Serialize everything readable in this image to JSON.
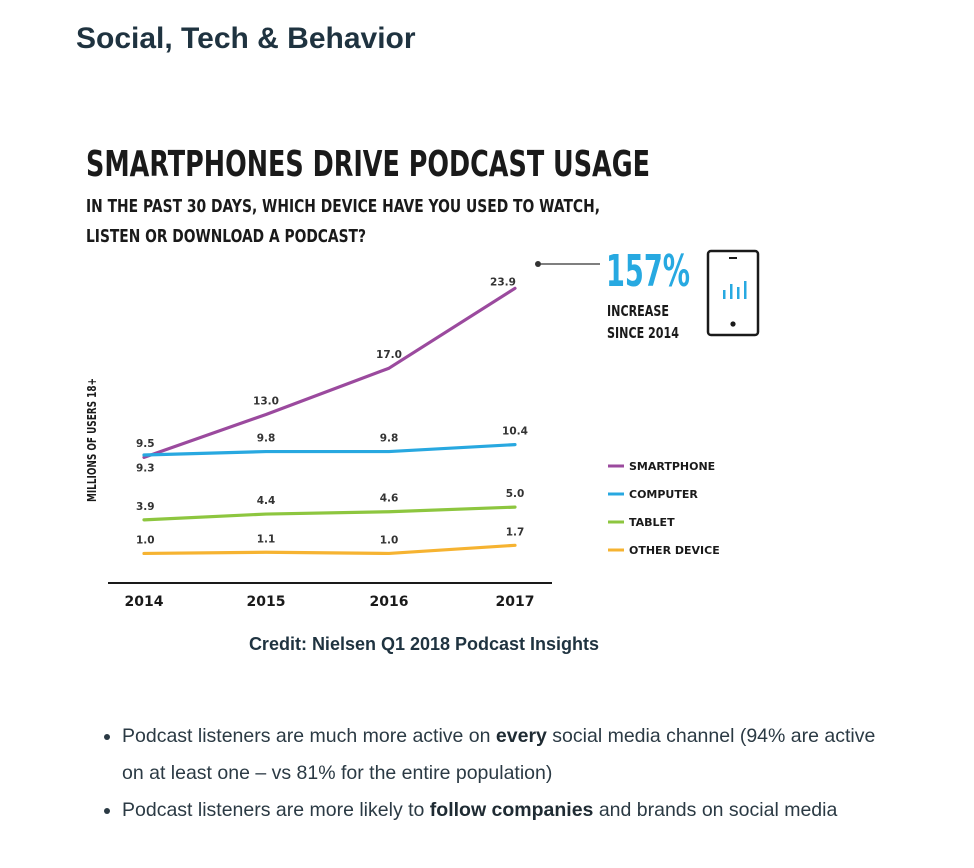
{
  "page": {
    "heading": "Social, Tech & Behavior",
    "credit": "Credit: Nielsen Q1 2018 Podcast Insights",
    "bullets": [
      {
        "pre": "Podcast listeners are much more active on ",
        "bold": "every",
        "post": " social media channel (94% are active on at least one – vs 81% for the entire population)"
      },
      {
        "pre": "Podcast listeners are more likely to ",
        "bold": "follow companies",
        "post": " and brands on social media"
      }
    ]
  },
  "chart_data": {
    "type": "line",
    "title": "SMARTPHONES DRIVE PODCAST USAGE",
    "subtitle_lines": [
      "IN THE PAST 30 DAYS, WHICH DEVICE HAVE YOU USED TO WATCH,",
      "LISTEN OR DOWNLOAD A PODCAST?"
    ],
    "xlabel": "",
    "ylabel": "MILLIONS OF USERS 18+",
    "x": [
      "2014",
      "2015",
      "2016",
      "2017"
    ],
    "ylim": [
      0,
      26
    ],
    "grid": false,
    "legend_placement": "right",
    "series": [
      {
        "name": "SMARTPHONE",
        "color": "#9b4a9e",
        "values": [
          9.3,
          13.0,
          17.0,
          23.9
        ],
        "labels": [
          "9.3",
          "13.0",
          "17.0",
          "23.9"
        ]
      },
      {
        "name": "COMPUTER",
        "color": "#28a8e0",
        "values": [
          9.5,
          9.8,
          9.8,
          10.4
        ],
        "labels": [
          "9.5",
          "9.8",
          "9.8",
          "10.4"
        ]
      },
      {
        "name": "TABLET",
        "color": "#8dc63f",
        "values": [
          3.9,
          4.4,
          4.6,
          5.0
        ],
        "labels": [
          "3.9",
          "4.4",
          "4.6",
          "5.0"
        ]
      },
      {
        "name": "OTHER DEVICE",
        "color": "#f6b331",
        "values": [
          1.0,
          1.1,
          1.0,
          1.7
        ],
        "labels": [
          "1.0",
          "1.1",
          "1.0",
          "1.7"
        ]
      }
    ],
    "annotation": {
      "value": "157%",
      "lines": [
        "INCREASE",
        "SINCE 2014"
      ],
      "color": "#27a9e1",
      "icon": "smartphone-chart-icon"
    }
  }
}
